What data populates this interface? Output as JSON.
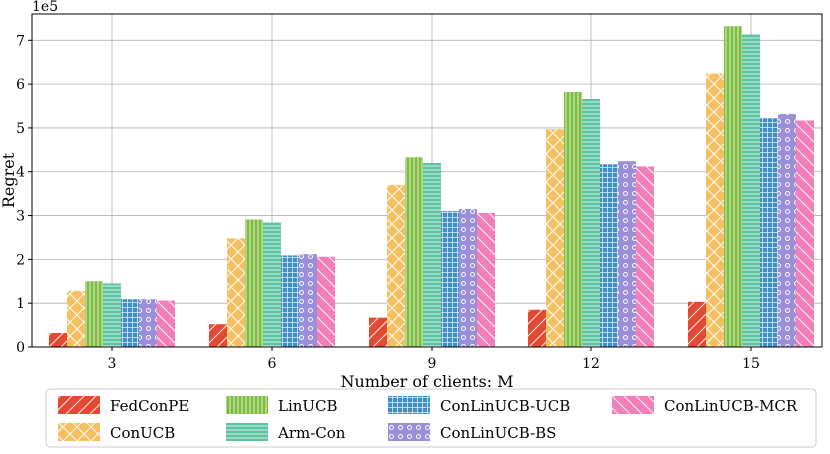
{
  "chart_data": {
    "type": "bar",
    "title": "",
    "xlabel": "Number of clients: M",
    "ylabel": "Regret",
    "y_scale_label": "1e5",
    "y_scale": 100000,
    "ylim": [
      0,
      7.6
    ],
    "yticks": [
      0,
      1,
      2,
      3,
      4,
      5,
      6,
      7
    ],
    "grid": true,
    "legend_position": "bottom",
    "categories": [
      "3",
      "6",
      "9",
      "12",
      "15"
    ],
    "series": [
      {
        "name": "FedConPE",
        "color": "#e24a33",
        "hatch": "diag",
        "values": [
          0.32,
          0.52,
          0.67,
          0.85,
          1.03
        ]
      },
      {
        "name": "ConUCB",
        "color": "#f5c061",
        "hatch": "cross",
        "values": [
          1.28,
          2.48,
          3.7,
          4.97,
          6.24
        ]
      },
      {
        "name": "LinUCB",
        "color": "#7dbc3f",
        "hatch": "vert",
        "values": [
          1.5,
          2.91,
          4.33,
          5.82,
          7.32
        ]
      },
      {
        "name": "Arm-Con",
        "color": "#5cc4a0",
        "hatch": "horiz",
        "values": [
          1.45,
          2.84,
          4.2,
          5.66,
          7.13
        ]
      },
      {
        "name": "ConLinUCB-UCB",
        "color": "#3d8fc6",
        "hatch": "grid",
        "values": [
          1.09,
          2.09,
          3.1,
          4.17,
          5.22
        ]
      },
      {
        "name": "ConLinUCB-BS",
        "color": "#9b8fd9",
        "hatch": "dots",
        "values": [
          1.09,
          2.12,
          3.15,
          4.24,
          5.32
        ]
      },
      {
        "name": "ConLinUCB-MCR",
        "color": "#f27fb8",
        "hatch": "backdiag",
        "values": [
          1.06,
          2.06,
          3.06,
          4.12,
          5.17
        ]
      }
    ]
  }
}
